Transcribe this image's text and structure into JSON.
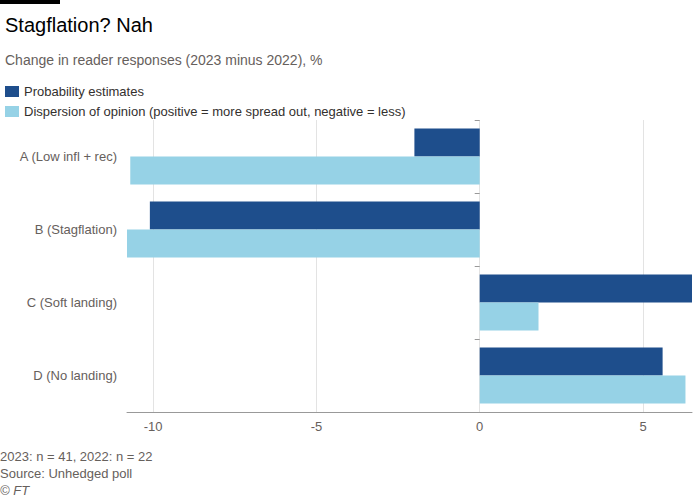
{
  "chart_data": {
    "type": "bar",
    "title": "Stagflation? Nah",
    "subtitle": "Change in reader responses (2023 minus 2022), %",
    "categories": [
      "A (Low infl + rec)",
      "B (Stagflation)",
      "C (Soft landing)",
      "D (No landing)"
    ],
    "series": [
      {
        "name": "Probability estimates",
        "color": "#1e4e8c",
        "values": [
          -2.0,
          -10.1,
          6.5,
          5.6
        ]
      },
      {
        "name": "Dispersion of opinion (positive = more spread out, negative = less)",
        "color": "#96d2e6",
        "values": [
          -10.7,
          -10.8,
          1.8,
          6.3
        ]
      }
    ],
    "xlim": [
      -10.8,
      6.5
    ],
    "xticks": [
      -10,
      -5,
      0,
      5
    ],
    "orientation": "horizontal",
    "grid": true,
    "legend": "top-left",
    "annotations": [
      "2023: n = 41, 2022: n = 22",
      "Source: Unhedged poll",
      "© FT"
    ]
  }
}
